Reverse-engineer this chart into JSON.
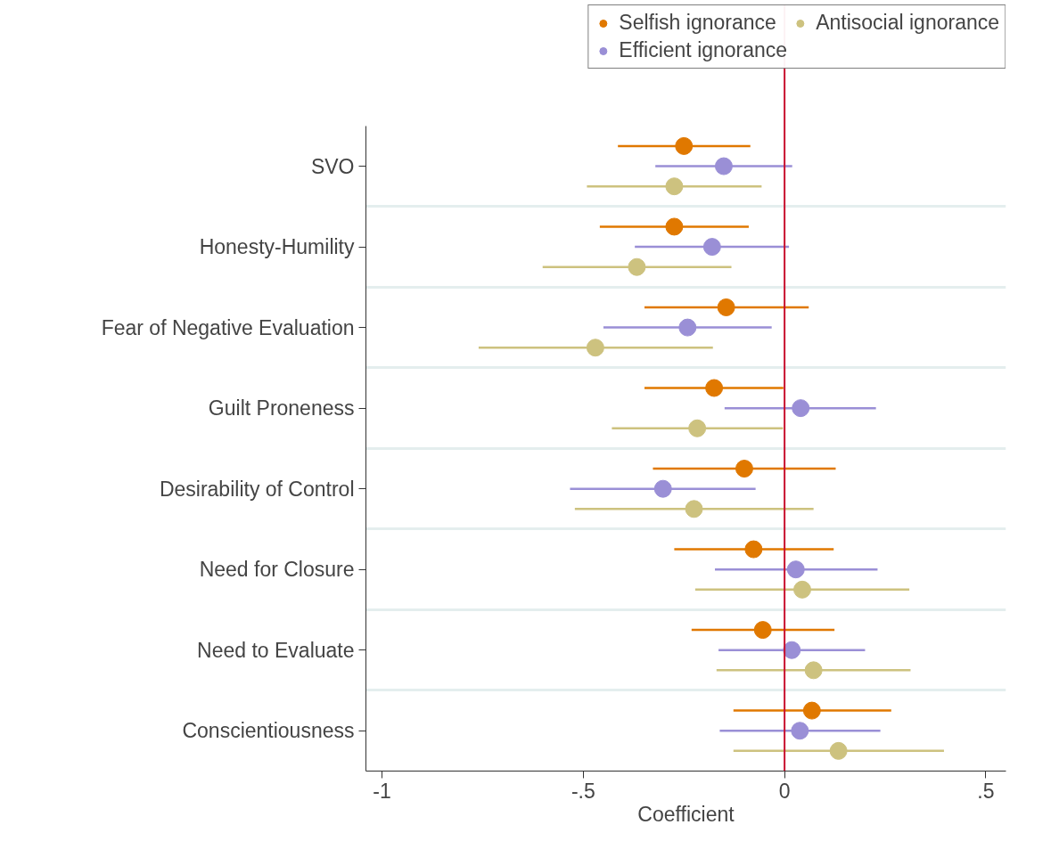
{
  "chart_data": {
    "type": "scatter",
    "orientation": "horizontal",
    "xlabel": "Coefficient",
    "categories": [
      "SVO",
      "Honesty-Humility",
      "Fear of Negative Evaluation",
      "Guilt Proneness",
      "Desirability of Control",
      "Need for Closure",
      "Need to Evaluate",
      "Conscientiousness"
    ],
    "xlim": [
      -1.04,
      0.55
    ],
    "xticks": [
      {
        "value": -1,
        "label": "-1"
      },
      {
        "value": -0.5,
        "label": "-.5"
      },
      0,
      {
        "value": 0.5,
        "label": ".5"
      }
    ],
    "series": [
      {
        "name": "Selfish ignorance",
        "color": "#e07800",
        "values": [
          -0.25,
          -0.274,
          -0.145,
          -0.175,
          -0.1,
          -0.077,
          -0.054,
          0.068
        ],
        "errors": [
          [
            -0.414,
            -0.085
          ],
          [
            -0.459,
            -0.089
          ],
          [
            -0.348,
            0.06
          ],
          [
            -0.348,
            -0.003
          ],
          [
            -0.327,
            0.127
          ],
          [
            -0.274,
            0.122
          ],
          [
            -0.231,
            0.124
          ],
          [
            -0.127,
            0.265
          ]
        ]
      },
      {
        "name": "Efficient ignorance",
        "color": "#9a8fd6",
        "values": [
          -0.151,
          -0.18,
          -0.241,
          0.04,
          -0.302,
          0.028,
          0.018,
          0.038
        ],
        "errors": [
          [
            -0.321,
            0.019
          ],
          [
            -0.372,
            0.011
          ],
          [
            -0.45,
            -0.032
          ],
          [
            -0.149,
            0.227
          ],
          [
            -0.533,
            -0.072
          ],
          [
            -0.173,
            0.231
          ],
          [
            -0.164,
            0.2
          ],
          [
            -0.161,
            0.238
          ]
        ]
      },
      {
        "name": "Antisocial ignorance",
        "color": "#cdc27f",
        "values": [
          -0.274,
          -0.367,
          -0.47,
          -0.217,
          -0.225,
          0.044,
          0.072,
          0.134
        ],
        "errors": [
          [
            -0.491,
            -0.057
          ],
          [
            -0.601,
            -0.132
          ],
          [
            -0.76,
            -0.178
          ],
          [
            -0.429,
            -0.004
          ],
          [
            -0.521,
            0.072
          ],
          [
            -0.222,
            0.31
          ],
          [
            -0.169,
            0.313
          ],
          [
            -0.127,
            0.396
          ]
        ]
      }
    ],
    "ref_lines": [
      {
        "axis": "x",
        "value": 0,
        "color": "#c8102e"
      }
    ],
    "grid": "y",
    "legend": "top right",
    "marker": "circle"
  }
}
